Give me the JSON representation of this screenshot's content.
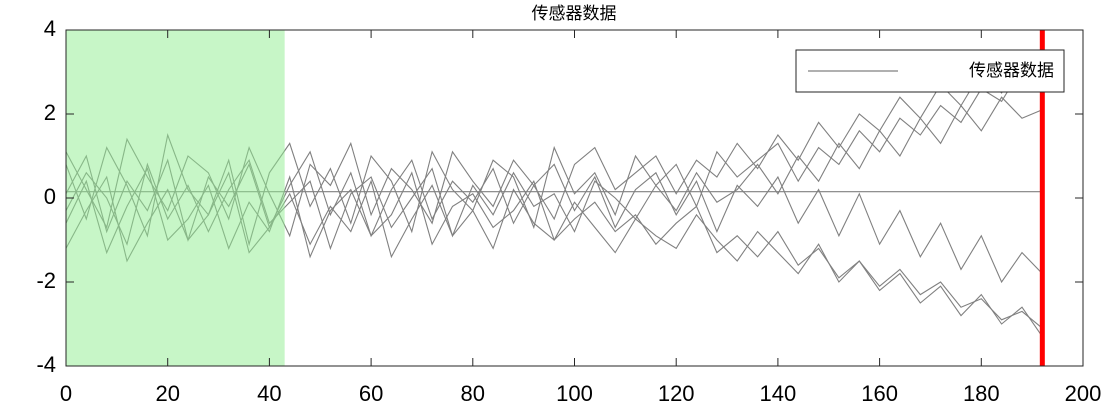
{
  "chart_data": {
    "type": "line",
    "title": "传感器数据",
    "x": [
      0,
      4,
      8,
      12,
      16,
      20,
      24,
      28,
      32,
      36,
      40,
      44,
      48,
      52,
      56,
      60,
      64,
      68,
      72,
      76,
      80,
      84,
      88,
      92,
      96,
      100,
      104,
      108,
      112,
      116,
      120,
      124,
      128,
      132,
      136,
      140,
      144,
      148,
      152,
      156,
      160,
      164,
      168,
      172,
      176,
      180,
      184,
      188,
      192
    ],
    "series": [
      {
        "name": "传感器数据",
        "color": "#808080",
        "values": [
          0.8,
          -0.5,
          1.2,
          0.3,
          -0.9,
          1.5,
          0.2,
          -0.4,
          0.9,
          -1.1,
          0.6,
          1.3,
          -0.2,
          0.7,
          -0.6,
          1.0,
          0.4,
          -0.8,
          1.1,
          0.2,
          -0.3,
          0.9,
          0.5,
          -0.7,
          1.2,
          0.1,
          0.6,
          -0.4,
          1.0,
          0.3,
          0.8,
          -0.2,
          1.1,
          0.5,
          0.9,
          1.3,
          0.4,
          1.2,
          0.8,
          1.6,
          1.1,
          1.9,
          1.5,
          2.2,
          1.8,
          2.6,
          2.3,
          3.1,
          2.8
        ]
      },
      {
        "color": "#808080",
        "values": [
          -0.6,
          0.4,
          -1.3,
          -0.2,
          0.7,
          -1.0,
          -0.5,
          0.3,
          -1.2,
          -0.1,
          -0.8,
          0.5,
          -1.4,
          -0.3,
          0.2,
          -0.9,
          -0.4,
          0.6,
          -1.1,
          -0.2,
          0.1,
          -0.7,
          -0.3,
          0.4,
          -1.0,
          -0.5,
          -0.1,
          -0.8,
          -0.4,
          -1.1,
          -0.6,
          -0.2,
          -1.3,
          -0.9,
          -1.4,
          -0.8,
          -1.6,
          -1.2,
          -1.9,
          -1.5,
          -2.1,
          -1.7,
          -2.3,
          -2.0,
          -2.6,
          -2.4,
          -2.9,
          -2.7,
          -3.1
        ]
      },
      {
        "color": "#808080",
        "values": [
          1.1,
          0.2,
          -0.7,
          1.4,
          0.5,
          -0.3,
          1.0,
          0.6,
          -0.5,
          1.2,
          0.1,
          -0.9,
          0.8,
          0.3,
          1.3,
          -0.4,
          0.7,
          0.2,
          -0.6,
          1.1,
          0.4,
          -0.2,
          0.9,
          0.3,
          -0.5,
          0.8,
          1.2,
          0.2,
          0.6,
          1.0,
          0.1,
          0.9,
          0.5,
          1.3,
          0.7,
          1.5,
          0.9,
          1.8,
          1.2,
          2.0,
          1.6,
          2.4,
          1.9,
          2.7,
          2.2,
          3.0,
          2.5,
          3.4,
          3.0
        ]
      },
      {
        "color": "#808080",
        "values": [
          -1.2,
          -0.3,
          0.5,
          -1.5,
          -0.6,
          0.2,
          -1.0,
          -0.4,
          0.6,
          -1.3,
          -0.7,
          0.1,
          -1.1,
          -0.2,
          -0.8,
          0.4,
          -1.4,
          -0.5,
          0.3,
          -0.9,
          -0.3,
          -1.2,
          0.2,
          -0.6,
          -1.0,
          -0.1,
          -0.7,
          -1.3,
          -0.5,
          -0.9,
          -1.2,
          -0.4,
          -1.0,
          -1.5,
          -0.8,
          -1.3,
          -1.8,
          -1.1,
          -2.0,
          -1.5,
          -2.2,
          -1.8,
          -2.5,
          -2.1,
          -2.8,
          -2.3,
          -3.0,
          -2.6,
          -3.3
        ]
      },
      {
        "color": "#808080",
        "values": [
          0.1,
          1.0,
          -0.8,
          0.4,
          -0.3,
          0.9,
          -1.0,
          0.5,
          -0.2,
          0.8,
          -0.7,
          0.3,
          1.1,
          -0.4,
          0.6,
          -0.9,
          0.2,
          0.9,
          -0.5,
          0.4,
          -0.1,
          0.7,
          -0.6,
          0.3,
          0.8,
          -0.3,
          0.5,
          -0.7,
          0.2,
          0.6,
          -0.4,
          0.4,
          -0.8,
          0.3,
          -0.2,
          0.5,
          -0.6,
          0.2,
          -0.9,
          0.1,
          -1.1,
          -0.3,
          -1.4,
          -0.6,
          -1.7,
          -0.9,
          -2.0,
          -1.3,
          -1.8
        ]
      },
      {
        "color": "#808080",
        "values": [
          -0.3,
          0.6,
          0.0,
          -1.1,
          0.8,
          -0.5,
          0.3,
          -0.8,
          0.2,
          0.9,
          -0.6,
          -0.1,
          0.4,
          -1.2,
          0.1,
          0.5,
          -0.7,
          0.0,
          0.7,
          -0.9,
          0.3,
          -0.4,
          0.6,
          -0.2,
          0.1,
          -0.8,
          0.4,
          0.0,
          -0.5,
          0.3,
          -0.3,
          0.6,
          -0.1,
          0.2,
          0.8,
          0.1,
          1.0,
          0.4,
          1.3,
          0.7,
          1.6,
          1.0,
          1.9,
          1.3,
          2.2,
          1.6,
          2.4,
          1.9,
          2.1
        ]
      }
    ],
    "hline": 0.15,
    "shade": {
      "x": [
        0,
        43
      ],
      "color": "#90ee90"
    },
    "vline": {
      "x": 192,
      "color": "#ff0000"
    },
    "xlim": [
      0,
      200
    ],
    "ylim": [
      -4,
      4
    ],
    "xticks": [
      0,
      20,
      40,
      60,
      80,
      100,
      120,
      140,
      160,
      180,
      200
    ],
    "yticks": [
      -4,
      -2,
      0,
      2,
      4
    ],
    "legend": "upper right"
  }
}
